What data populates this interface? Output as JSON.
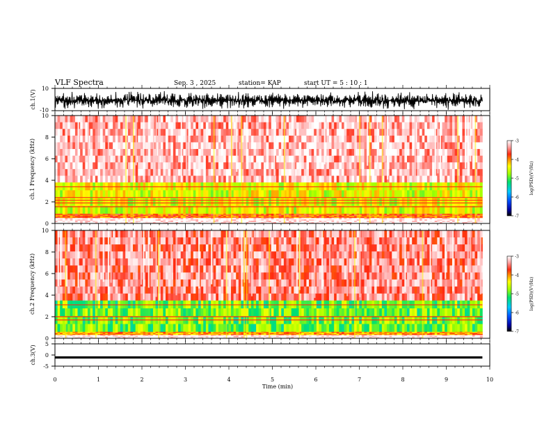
{
  "header": {
    "title": "VLF Spectra",
    "date": "Sep. 3 , 2025",
    "station": "station= KAP",
    "start": "start  UT =   5 : 10 : 1"
  },
  "chart_data": [
    {
      "type": "line",
      "name": "ch1-waveform",
      "ylabel": "ch.1(V)",
      "ylim": [
        -10,
        10
      ],
      "ytick_labels": [
        "10",
        "-10"
      ],
      "xlim": [
        0,
        10
      ],
      "data_xmax": 9.83,
      "level_description": "noisy waveform centred near 0 V with bursts spanning most of the +/-10 V range"
    },
    {
      "type": "heatmap",
      "name": "ch1-spectrogram",
      "ylabel": "ch.1 Frequency (kHz)",
      "ylim": [
        0,
        10
      ],
      "ytick_labels": [
        "0",
        "2",
        "4",
        "6",
        "8",
        "10"
      ],
      "xlim": [
        0,
        10
      ],
      "data_xmax": 9.83,
      "colorbar": {
        "label": "log(PSD)(V²/Hz)",
        "range": [
          -7,
          -3
        ],
        "tick_labels": [
          "-3",
          "-4",
          "-5",
          "-6",
          "-7"
        ]
      },
      "bands_khz": [
        {
          "from": 3.8,
          "to": 10,
          "level": -3.3
        },
        {
          "from": 0.9,
          "to": 3.8,
          "level": -4.7
        },
        {
          "from": 0.5,
          "to": 0.9,
          "level": -4.0
        },
        {
          "from": 0,
          "to": 0.5,
          "level": -3.0
        }
      ],
      "lines_khz": [
        3.4,
        2.4,
        2.15,
        1.9,
        1.55
      ]
    },
    {
      "type": "heatmap",
      "name": "ch2-spectrogram",
      "ylabel": "ch.2 Frequency (kHz)",
      "ylim": [
        0,
        10
      ],
      "ytick_labels": [
        "0",
        "2",
        "4",
        "6",
        "8",
        "10"
      ],
      "xlim": [
        0,
        10
      ],
      "data_xmax": 9.83,
      "colorbar": {
        "label": "log(PSD)(V²/Hz)",
        "range": [
          -7,
          -3
        ],
        "tick_labels": [
          "-3",
          "-4",
          "-5",
          "-6",
          "-7"
        ]
      },
      "bands_khz": [
        {
          "from": 3.5,
          "to": 10,
          "level": -3.5
        },
        {
          "from": 0.6,
          "to": 3.5,
          "level": -5.1
        },
        {
          "from": 0.3,
          "to": 0.6,
          "level": -4.2
        },
        {
          "from": 0,
          "to": 0.3,
          "level": -3.0
        }
      ],
      "lines_khz": [
        3.1,
        2.0,
        1.7
      ]
    },
    {
      "type": "line",
      "name": "ch3-waveform",
      "ylabel": "ch.3(V)",
      "ylim": [
        -5,
        5
      ],
      "ytick_labels": [
        "5",
        "0",
        "-5"
      ],
      "xlim": [
        0,
        10
      ],
      "data_xmax": 9.83,
      "level_description": "thick near-constant trace at about -1 V"
    }
  ],
  "xaxis": {
    "label": "Time  (min)",
    "ticks": [
      0,
      1,
      2,
      3,
      4,
      5,
      6,
      7,
      8,
      9,
      10
    ],
    "tick_labels": [
      "0",
      "1",
      "2",
      "3",
      "4",
      "5",
      "6",
      "7",
      "8",
      "9",
      "10"
    ]
  },
  "colors": {
    "colormap": [
      "#000000",
      "#0000a0",
      "#0050ff",
      "#00c8ff",
      "#00e070",
      "#a0ff00",
      "#ffff00",
      "#ff9900",
      "#ff2a10",
      "#ffaaaa",
      "#ffffff"
    ]
  }
}
